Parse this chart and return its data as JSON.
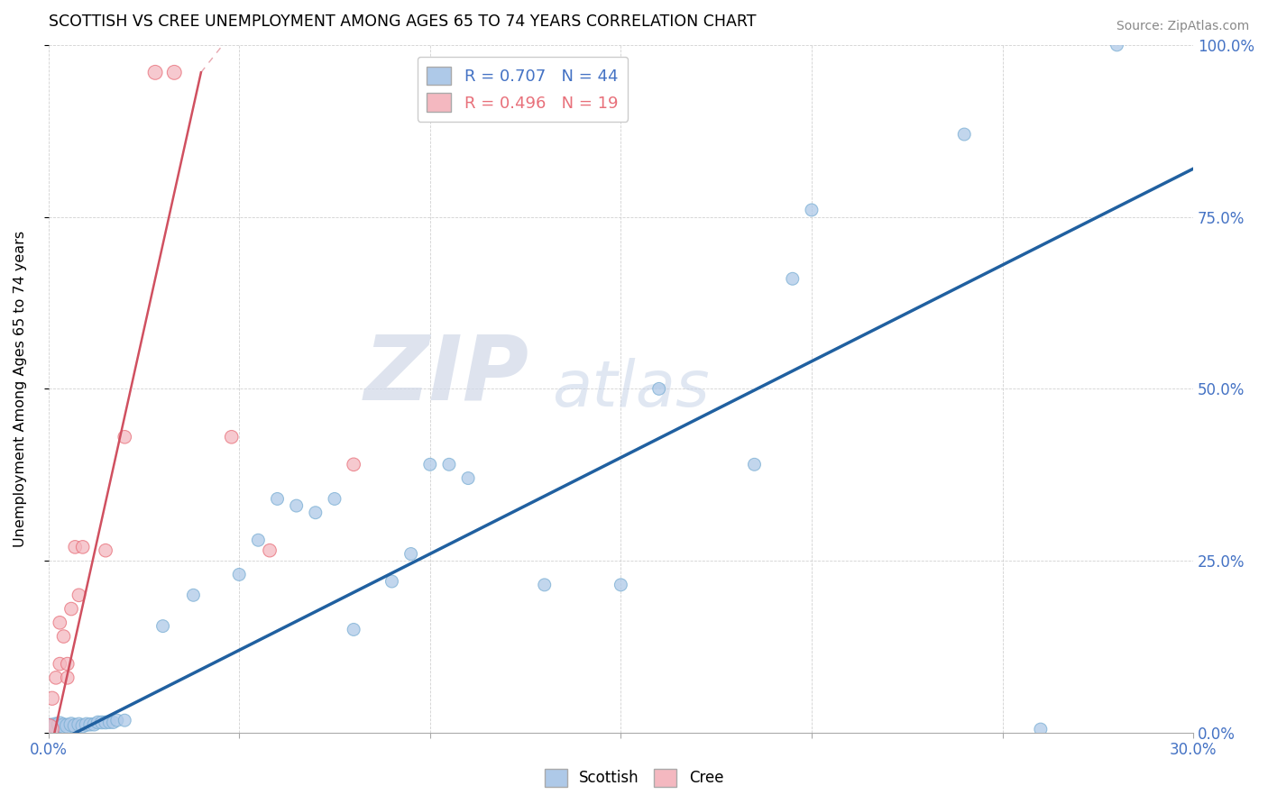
{
  "title": "SCOTTISH VS CREE UNEMPLOYMENT AMONG AGES 65 TO 74 YEARS CORRELATION CHART",
  "source": "Source: ZipAtlas.com",
  "ylabel": "Unemployment Among Ages 65 to 74 years",
  "xlim": [
    0,
    0.3
  ],
  "ylim": [
    0,
    1.0
  ],
  "xtick_positions": [
    0.0,
    0.05,
    0.1,
    0.15,
    0.2,
    0.25,
    0.3
  ],
  "xtick_labels": [
    "0.0%",
    "",
    "",
    "",
    "",
    "",
    "30.0%"
  ],
  "ytick_positions": [
    0.0,
    0.25,
    0.5,
    0.75,
    1.0
  ],
  "ytick_labels": [
    "0.0%",
    "25.0%",
    "50.0%",
    "75.0%",
    "100.0%"
  ],
  "watermark_zip": "ZIP",
  "watermark_atlas": "atlas",
  "scottish_color": "#aec9e8",
  "scottish_edge_color": "#7bafd4",
  "cree_color": "#f4b8c0",
  "cree_edge_color": "#e8707a",
  "scottish_line_color": "#2060a0",
  "cree_line_color": "#d05060",
  "scottish_line": [
    [
      0.0,
      -0.02
    ],
    [
      0.3,
      0.82
    ]
  ],
  "cree_line_solid": [
    [
      0.0,
      -0.04
    ],
    [
      0.04,
      0.96
    ]
  ],
  "cree_line_dashed": [
    [
      0.04,
      0.96
    ],
    [
      0.1,
      1.38
    ]
  ],
  "scottish_points": [
    [
      0.0,
      0.005,
      300
    ],
    [
      0.001,
      0.008,
      200
    ],
    [
      0.002,
      0.01,
      180
    ],
    [
      0.003,
      0.012,
      160
    ],
    [
      0.004,
      0.01,
      150
    ],
    [
      0.005,
      0.01,
      140
    ],
    [
      0.006,
      0.012,
      130
    ],
    [
      0.007,
      0.01,
      130
    ],
    [
      0.008,
      0.012,
      120
    ],
    [
      0.009,
      0.01,
      120
    ],
    [
      0.01,
      0.012,
      120
    ],
    [
      0.011,
      0.012,
      110
    ],
    [
      0.012,
      0.012,
      110
    ],
    [
      0.013,
      0.015,
      110
    ],
    [
      0.014,
      0.015,
      110
    ],
    [
      0.015,
      0.015,
      110
    ],
    [
      0.016,
      0.015,
      100
    ],
    [
      0.017,
      0.015,
      100
    ],
    [
      0.018,
      0.018,
      100
    ],
    [
      0.02,
      0.018,
      100
    ],
    [
      0.03,
      0.155,
      100
    ],
    [
      0.038,
      0.2,
      100
    ],
    [
      0.05,
      0.23,
      100
    ],
    [
      0.055,
      0.28,
      100
    ],
    [
      0.06,
      0.34,
      100
    ],
    [
      0.065,
      0.33,
      100
    ],
    [
      0.07,
      0.32,
      100
    ],
    [
      0.075,
      0.34,
      100
    ],
    [
      0.08,
      0.15,
      100
    ],
    [
      0.09,
      0.22,
      100
    ],
    [
      0.095,
      0.26,
      100
    ],
    [
      0.1,
      0.39,
      100
    ],
    [
      0.105,
      0.39,
      100
    ],
    [
      0.11,
      0.37,
      100
    ],
    [
      0.13,
      0.215,
      100
    ],
    [
      0.15,
      0.215,
      100
    ],
    [
      0.16,
      0.5,
      100
    ],
    [
      0.185,
      0.39,
      100
    ],
    [
      0.195,
      0.66,
      100
    ],
    [
      0.2,
      0.76,
      100
    ],
    [
      0.24,
      0.87,
      100
    ],
    [
      0.26,
      0.005,
      100
    ],
    [
      0.28,
      1.0,
      100
    ]
  ],
  "cree_points": [
    [
      0.0,
      0.005,
      280
    ],
    [
      0.001,
      0.05,
      120
    ],
    [
      0.002,
      0.08,
      110
    ],
    [
      0.003,
      0.1,
      110
    ],
    [
      0.003,
      0.16,
      110
    ],
    [
      0.004,
      0.14,
      110
    ],
    [
      0.005,
      0.08,
      110
    ],
    [
      0.005,
      0.1,
      110
    ],
    [
      0.006,
      0.18,
      110
    ],
    [
      0.007,
      0.27,
      110
    ],
    [
      0.008,
      0.2,
      110
    ],
    [
      0.009,
      0.27,
      110
    ],
    [
      0.015,
      0.265,
      110
    ],
    [
      0.02,
      0.43,
      110
    ],
    [
      0.028,
      0.96,
      130
    ],
    [
      0.033,
      0.96,
      130
    ],
    [
      0.048,
      0.43,
      110
    ],
    [
      0.058,
      0.265,
      110
    ],
    [
      0.08,
      0.39,
      110
    ]
  ]
}
